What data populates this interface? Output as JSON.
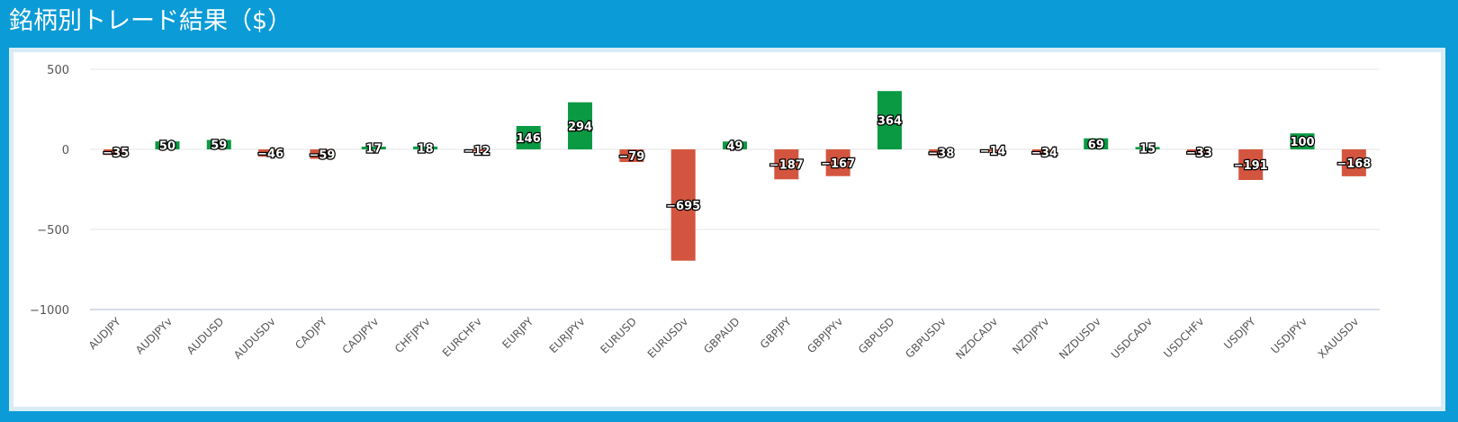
{
  "header": {
    "title": "銘柄別トレード結果（$）"
  },
  "chart_data": {
    "type": "bar",
    "title": "",
    "xlabel": "",
    "ylabel": "",
    "ylim": [
      -1000,
      500
    ],
    "yticks": [
      500,
      0,
      -500,
      -1000
    ],
    "ytick_labels": [
      "500",
      "0",
      "−500",
      "−1000"
    ],
    "grid": true,
    "legend": "none",
    "colors": {
      "positive": "#0a9a44",
      "negative": "#d4553f"
    },
    "categories": [
      "AUDJPY",
      "AUDJPYv",
      "AUDUSD",
      "AUDUSDv",
      "CADJPY",
      "CADJPYv",
      "CHFJPYv",
      "EURCHFv",
      "EURJPY",
      "EURJPYv",
      "EURUSD",
      "EURUSDv",
      "GBPAUD",
      "GBPJPY",
      "GBPJPYv",
      "GBPUSD",
      "GBPUSDv",
      "NZDCADv",
      "NZDJPYv",
      "NZDUSDv",
      "USDCADv",
      "USDCHFv",
      "USDJPY",
      "USDJPYv",
      "XAUUSDv"
    ],
    "values": [
      -35,
      50,
      59,
      -46,
      -59,
      17,
      18,
      -12,
      146,
      294,
      -79,
      -695,
      49,
      -187,
      -167,
      364,
      -38,
      -14,
      -34,
      69,
      15,
      -33,
      -191,
      100,
      -168
    ],
    "value_labels": [
      "−35",
      "50",
      "59",
      "−46",
      "−59",
      "17",
      "18",
      "−12",
      "146",
      "294",
      "−79",
      "−695",
      "49",
      "−187",
      "−167",
      "364",
      "−38",
      "−14",
      "−34",
      "69",
      "15",
      "−33",
      "−191",
      "100",
      "−168"
    ]
  }
}
